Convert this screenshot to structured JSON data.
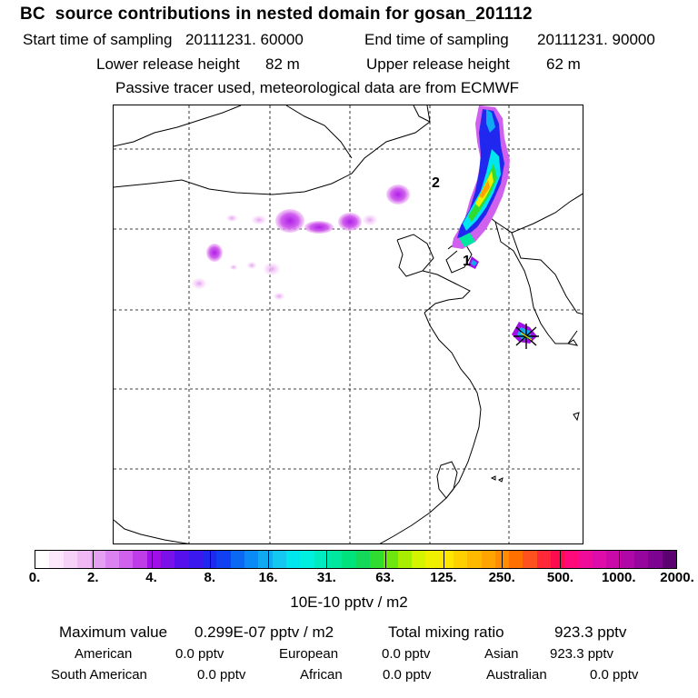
{
  "header": {
    "title": "BC  source contributions in nested domain for gosan_201112",
    "start_label": "Start time of sampling",
    "start_value": "20111231. 60000",
    "end_label": "End time of sampling",
    "end_value": "20111231. 90000",
    "lower_label": "Lower release height",
    "lower_value": "82 m",
    "upper_label": "Upper release height",
    "upper_value": "62 m",
    "tracer_note": "Passive tracer used, meteorological data are from ECMWF"
  },
  "map": {
    "markers": [
      {
        "label": "1"
      },
      {
        "label": "2"
      }
    ],
    "receptor_symbol": "star-icon"
  },
  "colorbar": {
    "colors": [
      "#ffffff",
      "#fbe8fb",
      "#f6d2f8",
      "#f0b8f5",
      "#e6a0f2",
      "#dc82f0",
      "#d060ee",
      "#bf3ce9",
      "#a010e6",
      "#7a10ea",
      "#5510ec",
      "#3a18ee",
      "#2028f0",
      "#1040f2",
      "#0a68f2",
      "#0a8af4",
      "#10aaf2",
      "#14c8f2",
      "#00e6ee",
      "#00f0e0",
      "#00ecc0",
      "#00e8a0",
      "#00e27c",
      "#14d85a",
      "#30dc30",
      "#6ce60c",
      "#a8ee00",
      "#d4f400",
      "#eef000",
      "#ffe600",
      "#ffd000",
      "#ffba00",
      "#ffa400",
      "#ff8c00",
      "#ff7000",
      "#ff5020",
      "#ff2838",
      "#ff0c50",
      "#ff0a7a",
      "#f00c9a",
      "#de0ca8",
      "#ca0aa8",
      "#b008a6",
      "#96069e",
      "#7c0490",
      "#5c0270"
    ],
    "ticks": [
      "0.",
      "2.",
      "4.",
      "8.",
      "16.",
      "31.",
      "63.",
      "125.",
      "250.",
      "500.",
      "1000.",
      "2000."
    ],
    "unit": "10E-10 pptv / m2"
  },
  "stats": {
    "max_label": "Maximum value",
    "max_value": "0.299E-07 pptv / m2",
    "total_label": "Total mixing ratio",
    "total_value": "923.3 pptv",
    "regions": [
      {
        "name": "American",
        "value": "0.0 pptv"
      },
      {
        "name": "European",
        "value": "0.0 pptv"
      },
      {
        "name": "Asian",
        "value": "923.3 pptv"
      },
      {
        "name": "South American",
        "value": "0.0 pptv"
      },
      {
        "name": "African",
        "value": "0.0 pptv"
      },
      {
        "name": "Australian",
        "value": "0.0 pptv"
      }
    ]
  }
}
